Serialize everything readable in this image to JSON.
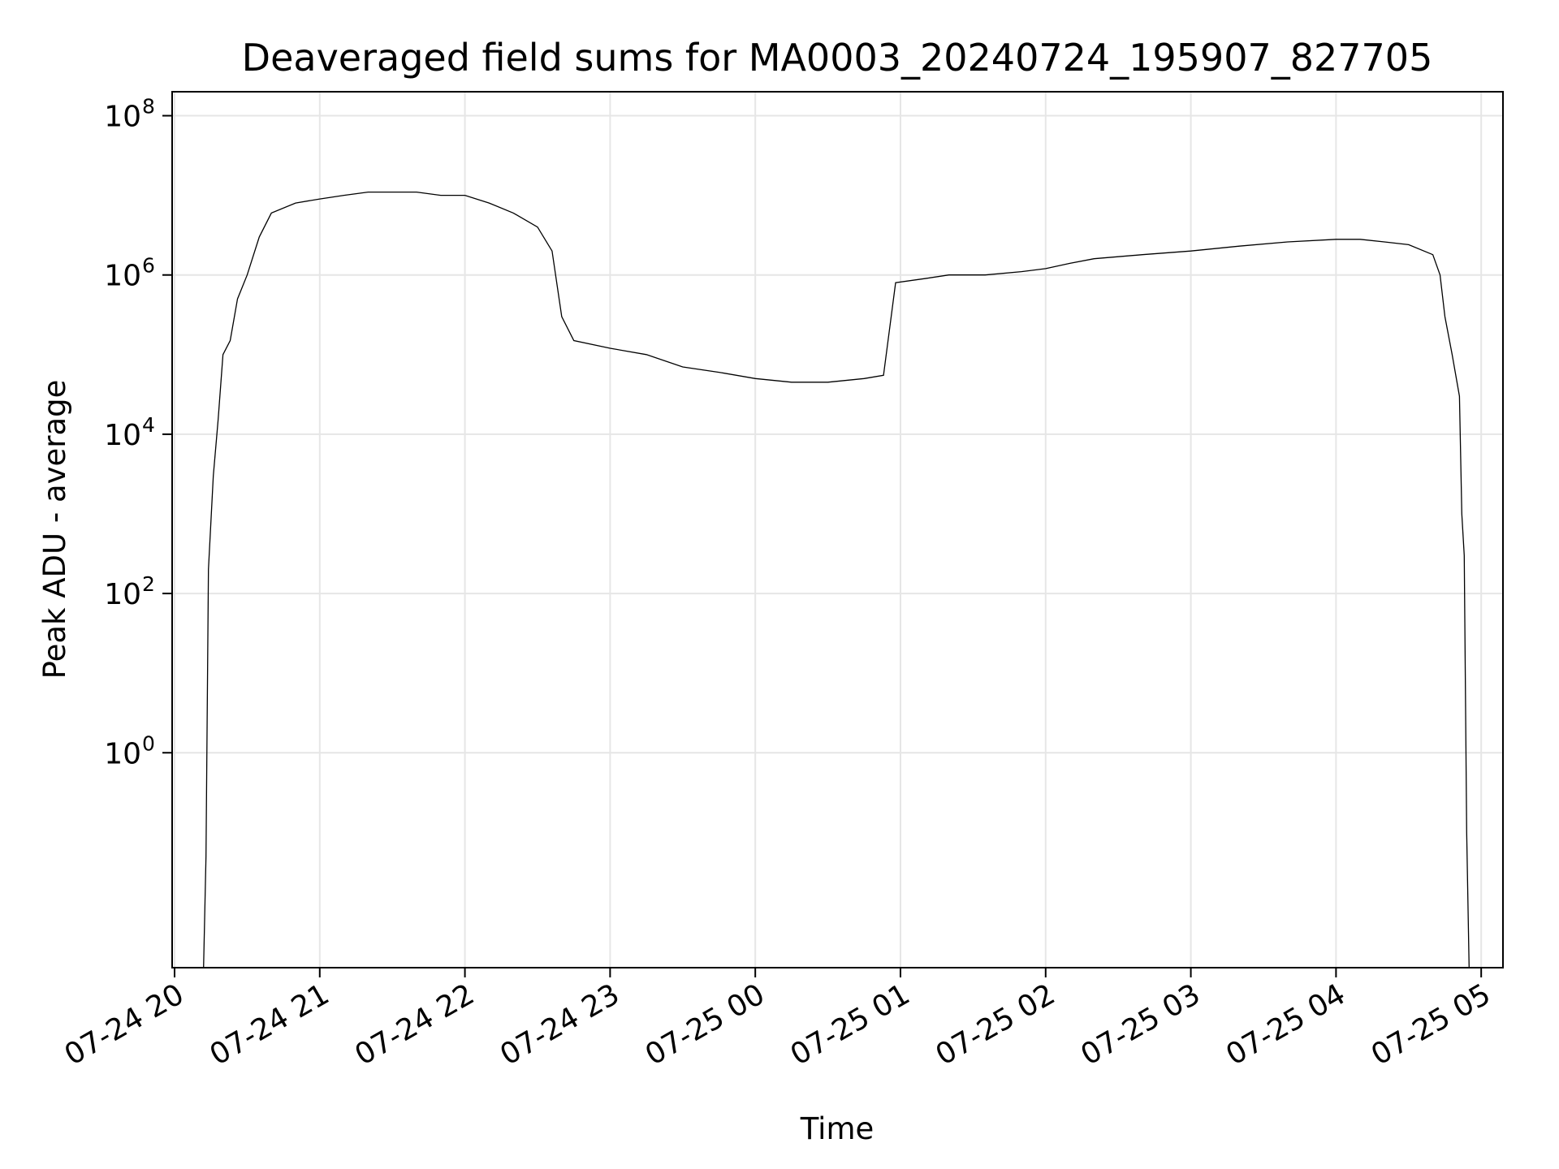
{
  "chart_data": {
    "type": "line",
    "title": "Deaveraged field sums for MA0003_20240724_195907_827705",
    "xlabel": "Time",
    "ylabel": "Peak ADU - average",
    "yscale": "log",
    "xlim": [
      "07-24 19:59",
      "07-25 05:09"
    ],
    "ylim": [
      0.002,
      200000000
    ],
    "grid": true,
    "line_color": "#000000",
    "x_ticks": [
      "07-24 20",
      "07-24 21",
      "07-24 22",
      "07-24 23",
      "07-25 00",
      "07-25 01",
      "07-25 02",
      "07-25 03",
      "07-25 04",
      "07-25 05"
    ],
    "y_ticks": [
      {
        "base": "10",
        "exp": "0",
        "value": 1
      },
      {
        "base": "10",
        "exp": "2",
        "value": 100
      },
      {
        "base": "10",
        "exp": "4",
        "value": 10000
      },
      {
        "base": "10",
        "exp": "6",
        "value": 1000000
      },
      {
        "base": "10",
        "exp": "8",
        "value": 100000000
      }
    ],
    "series": [
      {
        "x": [
          "07-24 20:12",
          "07-24 20:13",
          "07-24 20:14",
          "07-24 20:16",
          "07-24 20:18",
          "07-24 20:20",
          "07-24 20:23",
          "07-24 20:26",
          "07-24 20:30",
          "07-24 20:35",
          "07-24 20:40",
          "07-24 20:50",
          "07-24 21:00",
          "07-24 21:10",
          "07-24 21:20",
          "07-24 21:30",
          "07-24 21:40",
          "07-24 21:50",
          "07-24 22:00",
          "07-24 22:10",
          "07-24 22:20",
          "07-24 22:30",
          "07-24 22:36",
          "07-24 22:40",
          "07-24 22:45",
          "07-24 23:00",
          "07-24 23:15",
          "07-24 23:30",
          "07-24 23:45",
          "07-25 00:00",
          "07-25 00:15",
          "07-25 00:30",
          "07-25 00:45",
          "07-25 00:53",
          "07-25 00:58",
          "07-25 01:10",
          "07-25 01:20",
          "07-25 01:35",
          "07-25 01:50",
          "07-25 02:00",
          "07-25 02:10",
          "07-25 02:20",
          "07-25 02:40",
          "07-25 03:00",
          "07-25 03:20",
          "07-25 03:40",
          "07-25 04:00",
          "07-25 04:10",
          "07-25 04:20",
          "07-25 04:30",
          "07-25 04:40",
          "07-25 04:43",
          "07-25 04:45",
          "07-25 04:48",
          "07-25 04:51",
          "07-25 04:52",
          "07-25 04:53",
          "07-25 04:54",
          "07-25 04:55"
        ],
        "y": [
          0.002,
          0.05,
          200,
          3000,
          15000,
          100000,
          150000,
          500000,
          1000000,
          3000000,
          6000000,
          8000000,
          9000000,
          10000000,
          11000000,
          11000000,
          11000000,
          10000000,
          10000000,
          8000000,
          6000000,
          4000000,
          2000000,
          300000,
          150000,
          120000,
          100000,
          70000,
          60000,
          50000,
          45000,
          45000,
          50000,
          55000,
          800000,
          900000,
          1000000,
          1000000,
          1100000,
          1200000,
          1400000,
          1600000,
          1800000,
          2000000,
          2300000,
          2600000,
          2800000,
          2800000,
          2600000,
          2400000,
          1800000,
          1000000,
          300000,
          100000,
          30000,
          1000,
          300,
          0.1,
          0.002
        ]
      }
    ]
  }
}
